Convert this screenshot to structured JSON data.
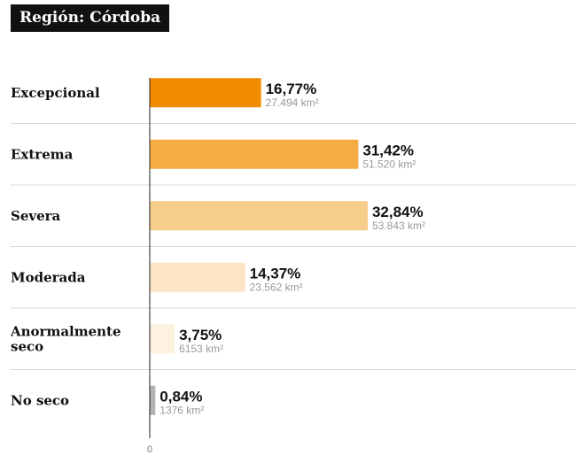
{
  "chart_data": {
    "type": "bar",
    "orientation": "horizontal",
    "title": "Región: Córdoba",
    "xlabel": "",
    "ylabel": "",
    "xlim": [
      0,
      35
    ],
    "x_ticks": [
      "0"
    ],
    "grid": false,
    "legend": "none",
    "categories": [
      {
        "lines": [
          "Excepcional"
        ]
      },
      {
        "lines": [
          "Extrema"
        ]
      },
      {
        "lines": [
          "Severa"
        ]
      },
      {
        "lines": [
          "Moderada"
        ]
      },
      {
        "lines": [
          "Anormalmente",
          "seco"
        ]
      },
      {
        "lines": [
          "No seco"
        ]
      }
    ],
    "values": [
      16.77,
      31.42,
      32.84,
      14.37,
      3.75,
      0.84
    ],
    "value_labels": [
      "16,77%",
      "31,42%",
      "32,84%",
      "14,37%",
      "3,75%",
      "0,84%"
    ],
    "area_labels": [
      "27.494 km²",
      "51.520 km²",
      "53.843 km²",
      "23.562 km²",
      "6153 km²",
      "1376 km²"
    ],
    "colors": [
      "#f28c00",
      "#f4ad45",
      "#f7cd8b",
      "#fbe5c5",
      "#fdf1df",
      "#b3b3b3"
    ],
    "divider_color": "#d9d9d9",
    "axis_color": "#222222"
  }
}
